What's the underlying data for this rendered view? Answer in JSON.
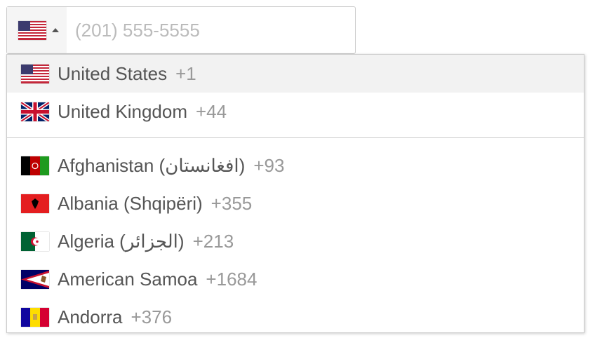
{
  "phone_input": {
    "placeholder": "(201) 555-5555",
    "selected_flag": "us-flag-icon"
  },
  "preferred": [
    {
      "name": "United States",
      "dial": "+1",
      "flag": "us",
      "highlighted": true
    },
    {
      "name": "United Kingdom",
      "dial": "+44",
      "flag": "gb"
    }
  ],
  "countries": [
    {
      "name": "Afghanistan (‫افغانستان‬‎)",
      "dial": "+93",
      "flag": "af"
    },
    {
      "name": "Albania (Shqipëri)",
      "dial": "+355",
      "flag": "al"
    },
    {
      "name": "Algeria (‫الجزائر‬‎)",
      "dial": "+213",
      "flag": "dz"
    },
    {
      "name": "American Samoa",
      "dial": "+1684",
      "flag": "as"
    },
    {
      "name": "Andorra",
      "dial": "+376",
      "flag": "ad"
    }
  ]
}
